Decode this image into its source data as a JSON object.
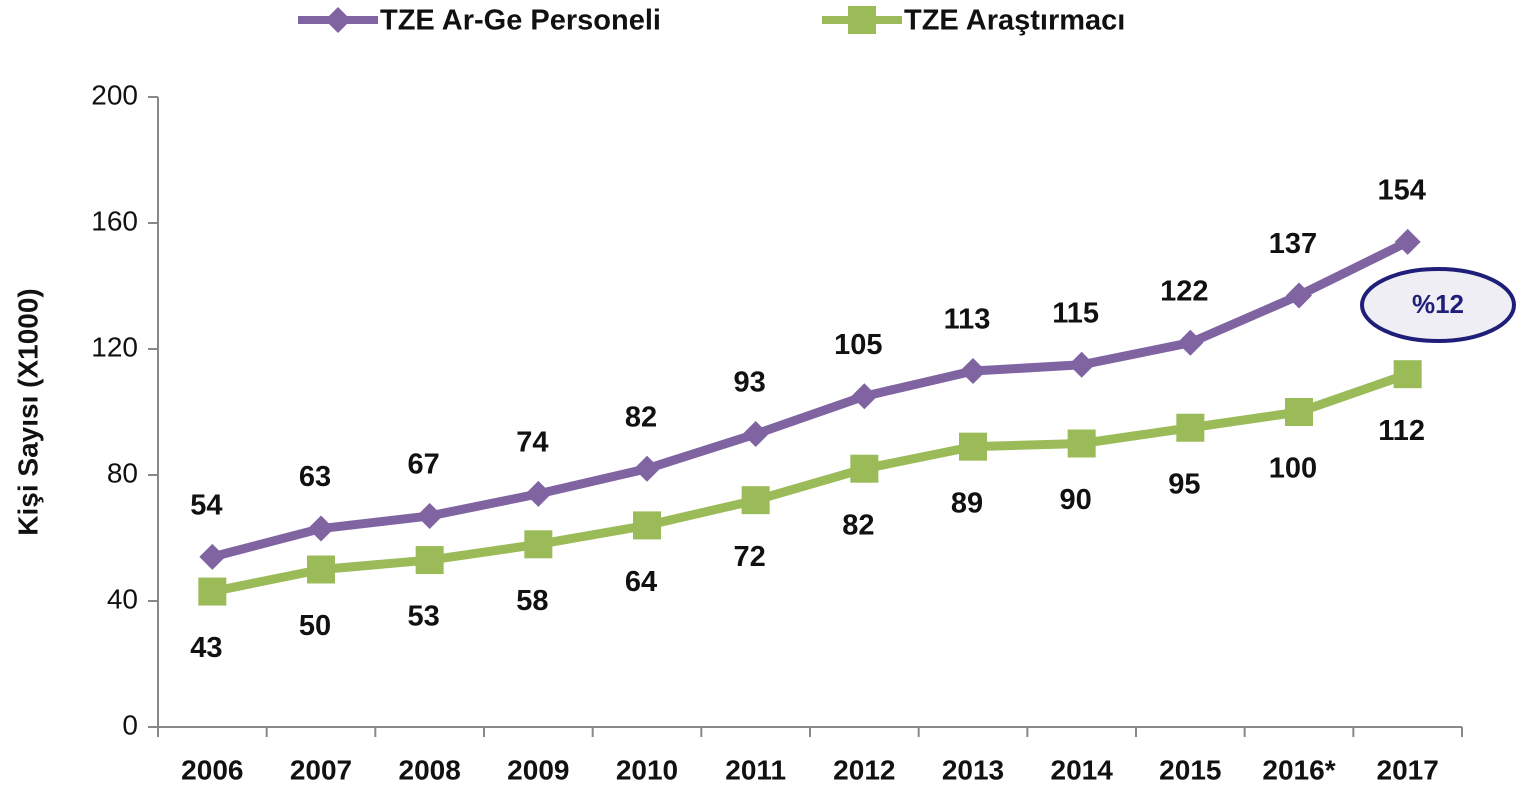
{
  "chart_data": {
    "type": "line",
    "y_label": "Kişi Sayısı (X1000)",
    "categories": [
      "2006",
      "2007",
      "2008",
      "2009",
      "2010",
      "2011",
      "2012",
      "2013",
      "2014",
      "2015",
      "2016*",
      "2017"
    ],
    "series": [
      {
        "name": "TZE Ar-Ge Personeli",
        "color": "#8064a2",
        "marker": "diamond",
        "values": [
          54,
          63,
          67,
          74,
          82,
          93,
          105,
          113,
          115,
          122,
          137,
          154
        ]
      },
      {
        "name": "TZE Araştırmacı",
        "color": "#9bbb59",
        "marker": "square",
        "values": [
          43,
          50,
          53,
          58,
          64,
          72,
          82,
          89,
          90,
          95,
          100,
          112
        ]
      }
    ],
    "ylim": [
      0,
      200
    ],
    "yticks": [
      0,
      40,
      80,
      120,
      160,
      200
    ],
    "legend": "top",
    "annotation": "%12"
  }
}
